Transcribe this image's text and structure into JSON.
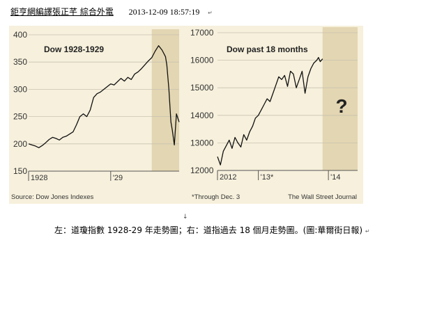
{
  "header": {
    "byline": "鉅亨網編譯張正芊 綜合外電",
    "timestamp": "2013-12-09 18:57:19",
    "mark": "↵"
  },
  "anchor_mark": "↓",
  "caption": {
    "text": "左：道瓊指數 1928-29 年走勢圖；右：道指過去 18 個月走勢圖。(圖:華爾街日報)",
    "mark": "↵"
  },
  "colors": {
    "panel_bg": "#f6f0dc",
    "highlight_band": "#e3d6b2",
    "line": "#111111",
    "grid": "#c8c2b0",
    "text": "#333333"
  },
  "chart_data": [
    {
      "type": "line",
      "title": "Dow 1928-1929",
      "source_note": "Source: Dow Jones Indexes",
      "ylim": [
        150,
        400
      ],
      "yticks": [
        150,
        200,
        250,
        300,
        350,
        400
      ],
      "x_range": [
        0,
        22
      ],
      "xtick_labels": [
        {
          "x": 0,
          "label": "1928"
        },
        {
          "x": 12,
          "label": "'29"
        }
      ],
      "highlight_range": [
        18,
        22
      ],
      "series": [
        {
          "points": [
            [
              0,
              200
            ],
            [
              0.5,
              198
            ],
            [
              1,
              196
            ],
            [
              1.5,
              193
            ],
            [
              2,
              197
            ],
            [
              2.5,
              202
            ],
            [
              3,
              208
            ],
            [
              3.5,
              212
            ],
            [
              4,
              210
            ],
            [
              4.5,
              207
            ],
            [
              5,
              212
            ],
            [
              5.5,
              214
            ],
            [
              6,
              218
            ],
            [
              6.5,
              222
            ],
            [
              7,
              235
            ],
            [
              7.5,
              250
            ],
            [
              8,
              255
            ],
            [
              8.5,
              250
            ],
            [
              9,
              262
            ],
            [
              9.5,
              285
            ],
            [
              10,
              292
            ],
            [
              10.5,
              295
            ],
            [
              11,
              300
            ],
            [
              11.5,
              305
            ],
            [
              12,
              310
            ],
            [
              12.5,
              308
            ],
            [
              13,
              314
            ],
            [
              13.5,
              320
            ],
            [
              14,
              315
            ],
            [
              14.5,
              322
            ],
            [
              15,
              318
            ],
            [
              15.5,
              328
            ],
            [
              16,
              332
            ],
            [
              16.5,
              338
            ],
            [
              17,
              345
            ],
            [
              17.5,
              352
            ],
            [
              18,
              358
            ],
            [
              18.5,
              370
            ],
            [
              19,
              380
            ],
            [
              19.5,
              372
            ],
            [
              20,
              360
            ],
            [
              20.2,
              345
            ],
            [
              20.5,
              300
            ],
            [
              20.8,
              240
            ],
            [
              21,
              225
            ],
            [
              21.3,
              198
            ],
            [
              21.6,
              255
            ],
            [
              22,
              240
            ]
          ]
        }
      ]
    },
    {
      "type": "line",
      "title": "Dow past 18 months",
      "source_note": "*Through Dec. 3",
      "credit": "The Wall Street Journal",
      "ylim": [
        12000,
        17000
      ],
      "yticks": [
        12000,
        13000,
        14000,
        15000,
        16000,
        17000
      ],
      "x_range": [
        0,
        24
      ],
      "xtick_labels": [
        {
          "x": 0,
          "label": "2012"
        },
        {
          "x": 7,
          "label": "'13*"
        },
        {
          "x": 19,
          "label": "'14"
        }
      ],
      "highlight_range": [
        18,
        24
      ],
      "annotation": "?",
      "series": [
        {
          "points": [
            [
              0,
              12500
            ],
            [
              0.5,
              12200
            ],
            [
              1,
              12700
            ],
            [
              1.5,
              12900
            ],
            [
              2,
              13100
            ],
            [
              2.5,
              12800
            ],
            [
              3,
              13200
            ],
            [
              3.5,
              13000
            ],
            [
              4,
              12850
            ],
            [
              4.5,
              13300
            ],
            [
              5,
              13100
            ],
            [
              5.5,
              13400
            ],
            [
              6,
              13600
            ],
            [
              6.5,
              13900
            ],
            [
              7,
              14000
            ],
            [
              7.5,
              14200
            ],
            [
              8,
              14400
            ],
            [
              8.5,
              14600
            ],
            [
              9,
              14500
            ],
            [
              9.5,
              14800
            ],
            [
              10,
              15100
            ],
            [
              10.5,
              15400
            ],
            [
              11,
              15300
            ],
            [
              11.5,
              15450
            ],
            [
              12,
              15050
            ],
            [
              12.5,
              15600
            ],
            [
              13,
              15500
            ],
            [
              13.5,
              15000
            ],
            [
              14,
              15300
            ],
            [
              14.5,
              15600
            ],
            [
              15,
              14800
            ],
            [
              15.5,
              15400
            ],
            [
              16,
              15700
            ],
            [
              16.5,
              15900
            ],
            [
              17,
              16000
            ],
            [
              17.3,
              16100
            ],
            [
              17.6,
              15950
            ],
            [
              18,
              16050
            ]
          ]
        }
      ]
    }
  ]
}
